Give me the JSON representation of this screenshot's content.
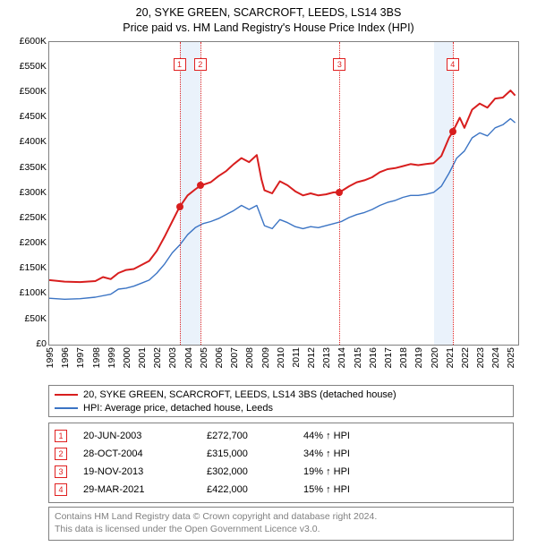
{
  "title_line1": "20, SYKE GREEN, SCARCROFT, LEEDS, LS14 3BS",
  "title_line2": "Price paid vs. HM Land Registry's House Price Index (HPI)",
  "chart": {
    "type": "line",
    "x_domain": [
      1995,
      2025.5
    ],
    "y_domain": [
      0,
      600000
    ],
    "y_ticks": [
      0,
      50000,
      100000,
      150000,
      200000,
      250000,
      300000,
      350000,
      400000,
      450000,
      500000,
      550000,
      600000
    ],
    "y_tick_labels": [
      "£0",
      "£50K",
      "£100K",
      "£150K",
      "£200K",
      "£250K",
      "£300K",
      "£350K",
      "£400K",
      "£450K",
      "£500K",
      "£550K",
      "£600K"
    ],
    "x_ticks": [
      1995,
      1996,
      1997,
      1998,
      1999,
      2000,
      2001,
      2002,
      2003,
      2004,
      2005,
      2006,
      2007,
      2008,
      2009,
      2010,
      2011,
      2012,
      2013,
      2014,
      2015,
      2016,
      2017,
      2018,
      2019,
      2020,
      2021,
      2022,
      2023,
      2024,
      2025
    ],
    "border_color": "#808080",
    "background_color": "#ffffff",
    "band_color": "#eaf2fb",
    "vline_color": "#e02020",
    "title_fontsize": 12.5,
    "tick_fontsize": 10.5,
    "series": {
      "property": {
        "label": "20, SYKE GREEN, SCARCROFT, LEEDS, LS14 3BS (detached house)",
        "color": "#d81e1e",
        "line_width": 2,
        "points": [
          [
            1995.0,
            128000
          ],
          [
            1996.0,
            125000
          ],
          [
            1997.0,
            124000
          ],
          [
            1998.0,
            126000
          ],
          [
            1998.5,
            134000
          ],
          [
            1999.0,
            130000
          ],
          [
            1999.5,
            142000
          ],
          [
            2000.0,
            148000
          ],
          [
            2000.5,
            150000
          ],
          [
            2001.0,
            158000
          ],
          [
            2001.5,
            166000
          ],
          [
            2002.0,
            186000
          ],
          [
            2002.5,
            214000
          ],
          [
            2003.0,
            244000
          ],
          [
            2003.47,
            272700
          ],
          [
            2004.0,
            296000
          ],
          [
            2004.5,
            308000
          ],
          [
            2004.82,
            315000
          ],
          [
            2005.5,
            322000
          ],
          [
            2006.0,
            334000
          ],
          [
            2006.5,
            344000
          ],
          [
            2007.0,
            358000
          ],
          [
            2007.5,
            370000
          ],
          [
            2008.0,
            362000
          ],
          [
            2008.5,
            376000
          ],
          [
            2008.8,
            328000
          ],
          [
            2009.0,
            306000
          ],
          [
            2009.5,
            300000
          ],
          [
            2010.0,
            324000
          ],
          [
            2010.5,
            316000
          ],
          [
            2011.0,
            304000
          ],
          [
            2011.5,
            296000
          ],
          [
            2012.0,
            300000
          ],
          [
            2012.5,
            296000
          ],
          [
            2013.0,
            298000
          ],
          [
            2013.5,
            302000
          ],
          [
            2013.88,
            302000
          ],
          [
            2014.5,
            314000
          ],
          [
            2015.0,
            322000
          ],
          [
            2015.5,
            326000
          ],
          [
            2016.0,
            332000
          ],
          [
            2016.5,
            342000
          ],
          [
            2017.0,
            348000
          ],
          [
            2017.5,
            350000
          ],
          [
            2018.0,
            354000
          ],
          [
            2018.5,
            358000
          ],
          [
            2019.0,
            356000
          ],
          [
            2019.5,
            358000
          ],
          [
            2020.0,
            360000
          ],
          [
            2020.5,
            374000
          ],
          [
            2021.0,
            410000
          ],
          [
            2021.24,
            422000
          ],
          [
            2021.7,
            450000
          ],
          [
            2022.0,
            430000
          ],
          [
            2022.5,
            466000
          ],
          [
            2023.0,
            478000
          ],
          [
            2023.5,
            470000
          ],
          [
            2024.0,
            488000
          ],
          [
            2024.5,
            490000
          ],
          [
            2025.0,
            504000
          ],
          [
            2025.3,
            494000
          ]
        ]
      },
      "hpi": {
        "label": "HPI: Average price, detached house, Leeds",
        "color": "#3b74c4",
        "line_width": 1.4,
        "points": [
          [
            1995.0,
            92000
          ],
          [
            1996.0,
            90000
          ],
          [
            1997.0,
            91000
          ],
          [
            1998.0,
            94000
          ],
          [
            1999.0,
            100000
          ],
          [
            1999.5,
            110000
          ],
          [
            2000.0,
            112000
          ],
          [
            2000.5,
            116000
          ],
          [
            2001.0,
            122000
          ],
          [
            2001.5,
            128000
          ],
          [
            2002.0,
            142000
          ],
          [
            2002.5,
            160000
          ],
          [
            2003.0,
            182000
          ],
          [
            2003.5,
            198000
          ],
          [
            2004.0,
            218000
          ],
          [
            2004.5,
            232000
          ],
          [
            2005.0,
            240000
          ],
          [
            2005.5,
            244000
          ],
          [
            2006.0,
            250000
          ],
          [
            2006.5,
            258000
          ],
          [
            2007.0,
            266000
          ],
          [
            2007.5,
            276000
          ],
          [
            2008.0,
            268000
          ],
          [
            2008.5,
            276000
          ],
          [
            2009.0,
            236000
          ],
          [
            2009.5,
            230000
          ],
          [
            2010.0,
            248000
          ],
          [
            2010.5,
            242000
          ],
          [
            2011.0,
            234000
          ],
          [
            2011.5,
            230000
          ],
          [
            2012.0,
            234000
          ],
          [
            2012.5,
            232000
          ],
          [
            2013.0,
            236000
          ],
          [
            2013.5,
            240000
          ],
          [
            2014.0,
            244000
          ],
          [
            2014.5,
            252000
          ],
          [
            2015.0,
            258000
          ],
          [
            2015.5,
            262000
          ],
          [
            2016.0,
            268000
          ],
          [
            2016.5,
            276000
          ],
          [
            2017.0,
            282000
          ],
          [
            2017.5,
            286000
          ],
          [
            2018.0,
            292000
          ],
          [
            2018.5,
            296000
          ],
          [
            2019.0,
            296000
          ],
          [
            2019.5,
            298000
          ],
          [
            2020.0,
            302000
          ],
          [
            2020.5,
            314000
          ],
          [
            2021.0,
            340000
          ],
          [
            2021.5,
            370000
          ],
          [
            2022.0,
            384000
          ],
          [
            2022.5,
            410000
          ],
          [
            2023.0,
            420000
          ],
          [
            2023.5,
            414000
          ],
          [
            2024.0,
            430000
          ],
          [
            2024.5,
            436000
          ],
          [
            2025.0,
            448000
          ],
          [
            2025.3,
            440000
          ]
        ]
      }
    },
    "sale_markers": [
      {
        "n": "1",
        "x": 2003.47,
        "y": 272700
      },
      {
        "n": "2",
        "x": 2004.82,
        "y": 315000
      },
      {
        "n": "3",
        "x": 2013.88,
        "y": 302000
      },
      {
        "n": "4",
        "x": 2021.24,
        "y": 422000
      }
    ],
    "bands": [
      {
        "from": 2003.47,
        "to": 2004.82
      },
      {
        "from": 2020.0,
        "to": 2021.24
      }
    ]
  },
  "legend": {
    "items": [
      {
        "color": "#d81e1e",
        "label": "20, SYKE GREEN, SCARCROFT, LEEDS, LS14 3BS (detached house)"
      },
      {
        "color": "#3b74c4",
        "label": "HPI: Average price, detached house, Leeds"
      }
    ]
  },
  "sales": [
    {
      "n": "1",
      "date": "20-JUN-2003",
      "price": "£272,700",
      "note": "44% ↑ HPI"
    },
    {
      "n": "2",
      "date": "28-OCT-2004",
      "price": "£315,000",
      "note": "34% ↑ HPI"
    },
    {
      "n": "3",
      "date": "19-NOV-2013",
      "price": "£302,000",
      "note": "19% ↑ HPI"
    },
    {
      "n": "4",
      "date": "29-MAR-2021",
      "price": "£422,000",
      "note": "15% ↑ HPI"
    }
  ],
  "footer_line1": "Contains HM Land Registry data © Crown copyright and database right 2024.",
  "footer_line2": "This data is licensed under the Open Government Licence v3.0."
}
